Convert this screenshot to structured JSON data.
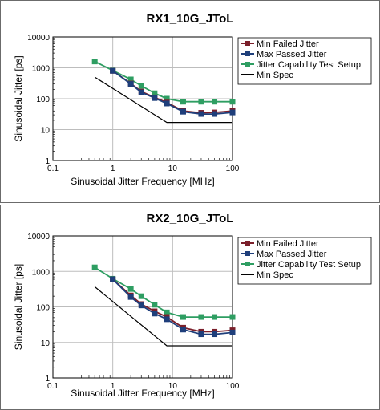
{
  "chart_data": [
    {
      "type": "line",
      "title": "RX1_10G_JToL",
      "xlabel": "Sinusoidal Jitter Frequency [MHz]",
      "ylabel": "Sinusoidal Jitter [ps]",
      "xscale": "log",
      "yscale": "log",
      "xlim": [
        0.1,
        100
      ],
      "ylim": [
        1,
        10000
      ],
      "x_ticks": [
        "0.1",
        "1",
        "10",
        "100"
      ],
      "y_ticks": [
        "1",
        "10",
        "100",
        "1000",
        "10000"
      ],
      "grid": true,
      "legend_position": "right",
      "series": [
        {
          "name": "Min Failed Jitter",
          "color": "#7b1f2a",
          "marker": "square",
          "x": [
            1,
            2,
            3,
            5,
            8,
            15,
            30,
            50,
            100
          ],
          "y": [
            800,
            310,
            170,
            110,
            75,
            40,
            35,
            36,
            40
          ]
        },
        {
          "name": "Max Passed Jitter",
          "color": "#1f3f7b",
          "marker": "square",
          "x": [
            1,
            2,
            3,
            5,
            8,
            15,
            30,
            50,
            100
          ],
          "y": [
            800,
            300,
            160,
            105,
            70,
            38,
            32,
            32,
            36
          ]
        },
        {
          "name": "Jitter Capability Test Setup",
          "color": "#2e9e62",
          "marker": "square",
          "x": [
            0.5,
            1,
            2,
            3,
            5,
            8,
            15,
            30,
            50,
            100
          ],
          "y": [
            1600,
            820,
            420,
            260,
            150,
            100,
            80,
            80,
            80,
            80
          ]
        },
        {
          "name": "Min Spec",
          "color": "#000000",
          "marker": "none",
          "x": [
            0.5,
            8,
            100
          ],
          "y": [
            500,
            17,
            17
          ]
        }
      ]
    },
    {
      "type": "line",
      "title": "RX2_10G_JToL",
      "xlabel": "Sinusoidal Jitter Frequency [MHz]",
      "ylabel": "Sinusoidal Jitter [ps]",
      "xscale": "log",
      "yscale": "log",
      "xlim": [
        0.1,
        100
      ],
      "ylim": [
        1,
        10000
      ],
      "x_ticks": [
        "0.1",
        "1",
        "10",
        "100"
      ],
      "y_ticks": [
        "1",
        "10",
        "100",
        "1000",
        "10000"
      ],
      "grid": true,
      "legend_position": "right",
      "series": [
        {
          "name": "Min Failed Jitter",
          "color": "#7b1f2a",
          "marker": "square",
          "x": [
            1,
            2,
            3,
            5,
            8,
            15,
            30,
            50,
            100
          ],
          "y": [
            600,
            210,
            120,
            75,
            52,
            26,
            20,
            20,
            22
          ]
        },
        {
          "name": "Max Passed Jitter",
          "color": "#1f3f7b",
          "marker": "square",
          "x": [
            1,
            2,
            3,
            5,
            8,
            15,
            30,
            50,
            100
          ],
          "y": [
            600,
            190,
            110,
            65,
            45,
            23,
            17,
            17,
            19
          ]
        },
        {
          "name": "Jitter Capability Test Setup",
          "color": "#2e9e62",
          "marker": "square",
          "x": [
            0.5,
            1,
            2,
            3,
            5,
            8,
            15,
            30,
            50,
            100
          ],
          "y": [
            1300,
            620,
            320,
            200,
            115,
            70,
            52,
            52,
            52,
            52
          ]
        },
        {
          "name": "Min Spec",
          "color": "#000000",
          "marker": "none",
          "x": [
            0.5,
            8,
            100
          ],
          "y": [
            370,
            8,
            8
          ]
        }
      ]
    }
  ]
}
